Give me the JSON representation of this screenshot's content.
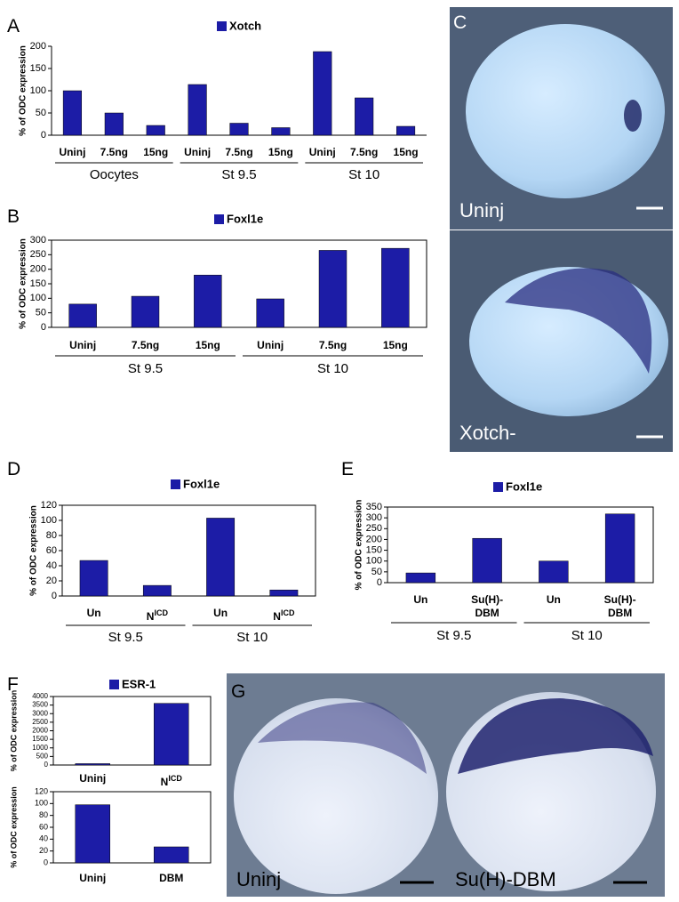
{
  "panel_labels": [
    "A",
    "B",
    "C",
    "D",
    "E",
    "F",
    "G"
  ],
  "images": [
    {
      "labels": [
        "Uninj",
        "Xotch-"
      ]
    },
    {
      "labels": [
        "Uninj",
        "Su(H)-DBM"
      ]
    }
  ],
  "chart_data": [
    {
      "type": "bar",
      "y_label": "% of ODC expression",
      "categories": [
        "Uninj",
        "7.5ng",
        "15ng",
        "Uninj",
        "7.5ng",
        "15ng",
        "Uninj",
        "7.5ng",
        "15ng"
      ],
      "groups": [
        "Oocytes",
        "St 9.5",
        "St 10"
      ],
      "series": [
        {
          "name": "Xotch",
          "color": "#1c1ca6",
          "values": [
            100,
            50,
            22,
            114,
            27,
            17,
            188,
            84,
            20
          ]
        }
      ],
      "ylim": [
        0,
        200
      ],
      "yticks": [
        0,
        50,
        100,
        150,
        200
      ]
    },
    {
      "type": "bar",
      "y_label": "% of ODC expression",
      "categories": [
        "Uninj",
        "7.5ng",
        "15ng",
        "Uninj",
        "7.5ng",
        "15ng"
      ],
      "groups": [
        "St 9.5",
        "St 10"
      ],
      "series": [
        {
          "name": "Foxl1e",
          "color": "#1c1ca6",
          "values": [
            80,
            107,
            180,
            98,
            265,
            272
          ]
        }
      ],
      "ylim": [
        0,
        300
      ],
      "yticks": [
        0,
        50,
        100,
        150,
        200,
        250,
        300
      ]
    },
    {
      "type": "bar",
      "y_label": "% of ODC expression",
      "categories": [
        "Un",
        "N",
        "Un",
        "N"
      ],
      "category_superscripts": [
        null,
        "ICD",
        null,
        "ICD"
      ],
      "groups": [
        "St 9.5",
        "St 10"
      ],
      "series": [
        {
          "name": "Foxl1e",
          "color": "#1c1ca6",
          "values": [
            47,
            14,
            103,
            8
          ]
        }
      ],
      "ylim": [
        0,
        120
      ],
      "yticks": [
        0,
        20,
        40,
        60,
        80,
        100,
        120
      ]
    },
    {
      "type": "bar",
      "y_label": "% of ODC expression",
      "categories": [
        "Un",
        "Su(H)-\nDBM",
        "Un",
        "Su(H)-\nDBM"
      ],
      "groups": [
        "St 9.5",
        "St 10"
      ],
      "series": [
        {
          "name": "Foxl1e",
          "color": "#1c1ca6",
          "values": [
            45,
            205,
            100,
            318
          ]
        }
      ],
      "ylim": [
        0,
        350
      ],
      "yticks": [
        0,
        50,
        100,
        150,
        200,
        250,
        300,
        350
      ]
    },
    {
      "type": "bar",
      "y_label": "% of ODC expression",
      "categories": [
        "Uninj",
        "N"
      ],
      "category_superscripts": [
        null,
        "ICD"
      ],
      "series": [
        {
          "name": "ESR-1",
          "color": "#1c1ca6",
          "values": [
            80,
            3600
          ]
        }
      ],
      "ylim": [
        0,
        4000
      ],
      "yticks": [
        0,
        500,
        1000,
        1500,
        2000,
        2500,
        3000,
        3500,
        4000
      ]
    },
    {
      "type": "bar",
      "y_label": "% of ODC expression",
      "categories": [
        "Uninj",
        "DBM"
      ],
      "series": [
        {
          "color": "#1c1ca6",
          "values": [
            98,
            27
          ]
        }
      ],
      "ylim": [
        0,
        120
      ],
      "yticks": [
        0,
        20,
        40,
        60,
        80,
        100,
        120
      ]
    }
  ]
}
